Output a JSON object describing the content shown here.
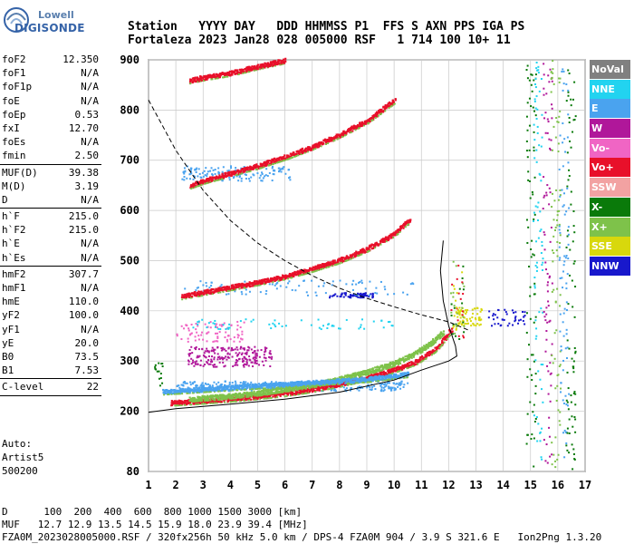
{
  "logo": {
    "line1": "Lowell",
    "line2": "DIGISONDE"
  },
  "header": {
    "labels": [
      "Station",
      "YYYY",
      "DAY",
      "DDD",
      "HHMMSS",
      "P1",
      "FFS",
      "S",
      "AXN",
      "PPS",
      "IGA",
      "PS"
    ],
    "line1": "Station   YYYY DAY   DDD HHMMSS P1  FFS S AXN PPS IGA PS",
    "line2": "Fortaleza 2023 Jan28 028 005000 RSF   1 714 100 10+ 11"
  },
  "params": {
    "group1": [
      {
        "k": "foF2",
        "v": "12.350"
      },
      {
        "k": "foF1",
        "v": "N/A"
      },
      {
        "k": "foF1p",
        "v": "N/A"
      },
      {
        "k": "foE",
        "v": "N/A"
      },
      {
        "k": "foEp",
        "v": "0.53"
      },
      {
        "k": "fxI",
        "v": "12.70"
      },
      {
        "k": "foEs",
        "v": "N/A"
      },
      {
        "k": "fmin",
        "v": "2.50"
      }
    ],
    "group2": [
      {
        "k": "MUF(D)",
        "v": "39.38"
      },
      {
        "k": "M(D)",
        "v": "3.19"
      },
      {
        "k": "D",
        "v": "N/A"
      }
    ],
    "group3": [
      {
        "k": "h`F",
        "v": "215.0"
      },
      {
        "k": "h`F2",
        "v": "215.0"
      },
      {
        "k": "h`E",
        "v": "N/A"
      },
      {
        "k": "h`Es",
        "v": "N/A"
      }
    ],
    "group4": [
      {
        "k": "hmF2",
        "v": "307.7"
      },
      {
        "k": "hmF1",
        "v": "N/A"
      },
      {
        "k": "hmE",
        "v": "110.0"
      },
      {
        "k": "yF2",
        "v": "100.0"
      },
      {
        "k": "yF1",
        "v": "N/A"
      },
      {
        "k": "yE",
        "v": "20.0"
      },
      {
        "k": "B0",
        "v": "73.5"
      },
      {
        "k": "B1",
        "v": "7.53"
      }
    ],
    "group5": [
      {
        "k": "C-level",
        "v": "22"
      }
    ]
  },
  "auto": {
    "line1": "Auto:",
    "line2": "Artist5",
    "line3": "500200"
  },
  "legend": [
    {
      "label": "NoVal",
      "color": "#808080"
    },
    {
      "label": "NNE",
      "color": "#22d3f0"
    },
    {
      "label": "E",
      "color": "#4aa3ef"
    },
    {
      "label": "W",
      "color": "#b0179a"
    },
    {
      "label": "Vo-",
      "color": "#f065c4"
    },
    {
      "label": "Vo+",
      "color": "#e8102a"
    },
    {
      "label": "SSW",
      "color": "#f2a2a2"
    },
    {
      "label": "X-",
      "color": "#0a7a0a"
    },
    {
      "label": "X+",
      "color": "#7ec24a"
    },
    {
      "label": "SSE",
      "color": "#d8d80c"
    },
    {
      "label": "NNW",
      "color": "#1818cc"
    }
  ],
  "footer": {
    "line1": "D      100  200  400  600  800 1000 1500 3000 [km]",
    "line2": "MUF   12.7 12.9 13.5 14.5 15.9 18.0 23.9 39.4 [MHz]",
    "line3": "FZA0M_2023028005000.RSF / 320fx256h 50 kHz 5.0 km / DPS-4 FZA0M 904 / 3.9 S 321.6 E   Ion2Png 1.3.20"
  },
  "chart_data": {
    "type": "scatter",
    "title": "",
    "xlabel": "",
    "ylabel": "",
    "xlim": [
      1,
      17
    ],
    "ylim": [
      80,
      900
    ],
    "x_ticks": [
      1,
      2,
      3,
      4,
      5,
      6,
      7,
      8,
      9,
      10,
      11,
      12,
      13,
      14,
      15,
      16,
      17
    ],
    "y_ticks": [
      80,
      200,
      300,
      400,
      500,
      600,
      700,
      800,
      900
    ],
    "grid": true,
    "traces": [
      {
        "name": "F2 O-trace",
        "color": "#e8102a",
        "points": [
          [
            1.8,
            218
          ],
          [
            3,
            222
          ],
          [
            4,
            226
          ],
          [
            5,
            231
          ],
          [
            6,
            237
          ],
          [
            7,
            245
          ],
          [
            8,
            256
          ],
          [
            9,
            268
          ],
          [
            10,
            284
          ],
          [
            10.8,
            300
          ],
          [
            11.5,
            325
          ],
          [
            11.9,
            350
          ],
          [
            12.1,
            365
          ]
        ]
      },
      {
        "name": "F2 X-trace",
        "color": "#7ec24a",
        "points": [
          [
            2.5,
            226
          ],
          [
            4,
            232
          ],
          [
            5,
            238
          ],
          [
            6,
            246
          ],
          [
            7,
            254
          ],
          [
            8,
            266
          ],
          [
            9,
            280
          ],
          [
            10,
            297
          ],
          [
            10.8,
            318
          ],
          [
            11.4,
            340
          ],
          [
            11.8,
            360
          ]
        ]
      },
      {
        "name": "E traces",
        "color": "#4aa3ef",
        "points": [
          [
            1.5,
            240
          ],
          [
            3,
            245
          ],
          [
            5,
            252
          ],
          [
            7,
            258
          ],
          [
            9,
            265
          ],
          [
            10.5,
            275
          ]
        ]
      },
      {
        "name": "2nd hop",
        "color": "#e8102a",
        "points": [
          [
            2.2,
            430
          ],
          [
            3,
            438
          ],
          [
            4,
            448
          ],
          [
            5,
            458
          ],
          [
            6,
            470
          ],
          [
            7,
            485
          ],
          [
            8,
            502
          ],
          [
            9,
            525
          ],
          [
            10,
            555
          ],
          [
            10.6,
            585
          ]
        ]
      },
      {
        "name": "3rd hop",
        "color": "#e8102a",
        "points": [
          [
            2.5,
            650
          ],
          [
            3,
            660
          ],
          [
            4,
            675
          ],
          [
            5,
            690
          ],
          [
            6,
            708
          ],
          [
            7,
            728
          ],
          [
            8,
            752
          ],
          [
            9,
            780
          ],
          [
            10,
            820
          ]
        ]
      },
      {
        "name": "4th hop",
        "color": "#e8102a",
        "points": [
          [
            2.5,
            860
          ],
          [
            3,
            866
          ],
          [
            4,
            875
          ],
          [
            5,
            888
          ],
          [
            6,
            900
          ]
        ]
      }
    ],
    "curves": [
      {
        "name": "profile",
        "style": "solid",
        "points": [
          [
            1,
            198
          ],
          [
            2,
            205
          ],
          [
            4,
            214
          ],
          [
            6,
            224
          ],
          [
            8,
            238
          ],
          [
            10,
            262
          ],
          [
            11,
            282
          ],
          [
            12,
            300
          ],
          [
            12.3,
            310
          ],
          [
            12.25,
            330
          ],
          [
            12,
            370
          ],
          [
            11.8,
            420
          ],
          [
            11.7,
            480
          ],
          [
            11.8,
            540
          ]
        ]
      },
      {
        "name": "muf-curve",
        "style": "dashed",
        "points": [
          [
            1,
            820
          ],
          [
            2,
            720
          ],
          [
            3,
            640
          ],
          [
            4,
            580
          ],
          [
            5,
            535
          ],
          [
            6,
            500
          ],
          [
            7,
            470
          ],
          [
            8,
            445
          ],
          [
            9,
            425
          ],
          [
            10,
            408
          ],
          [
            11,
            392
          ],
          [
            12,
            378
          ],
          [
            12.8,
            360
          ]
        ]
      }
    ]
  }
}
